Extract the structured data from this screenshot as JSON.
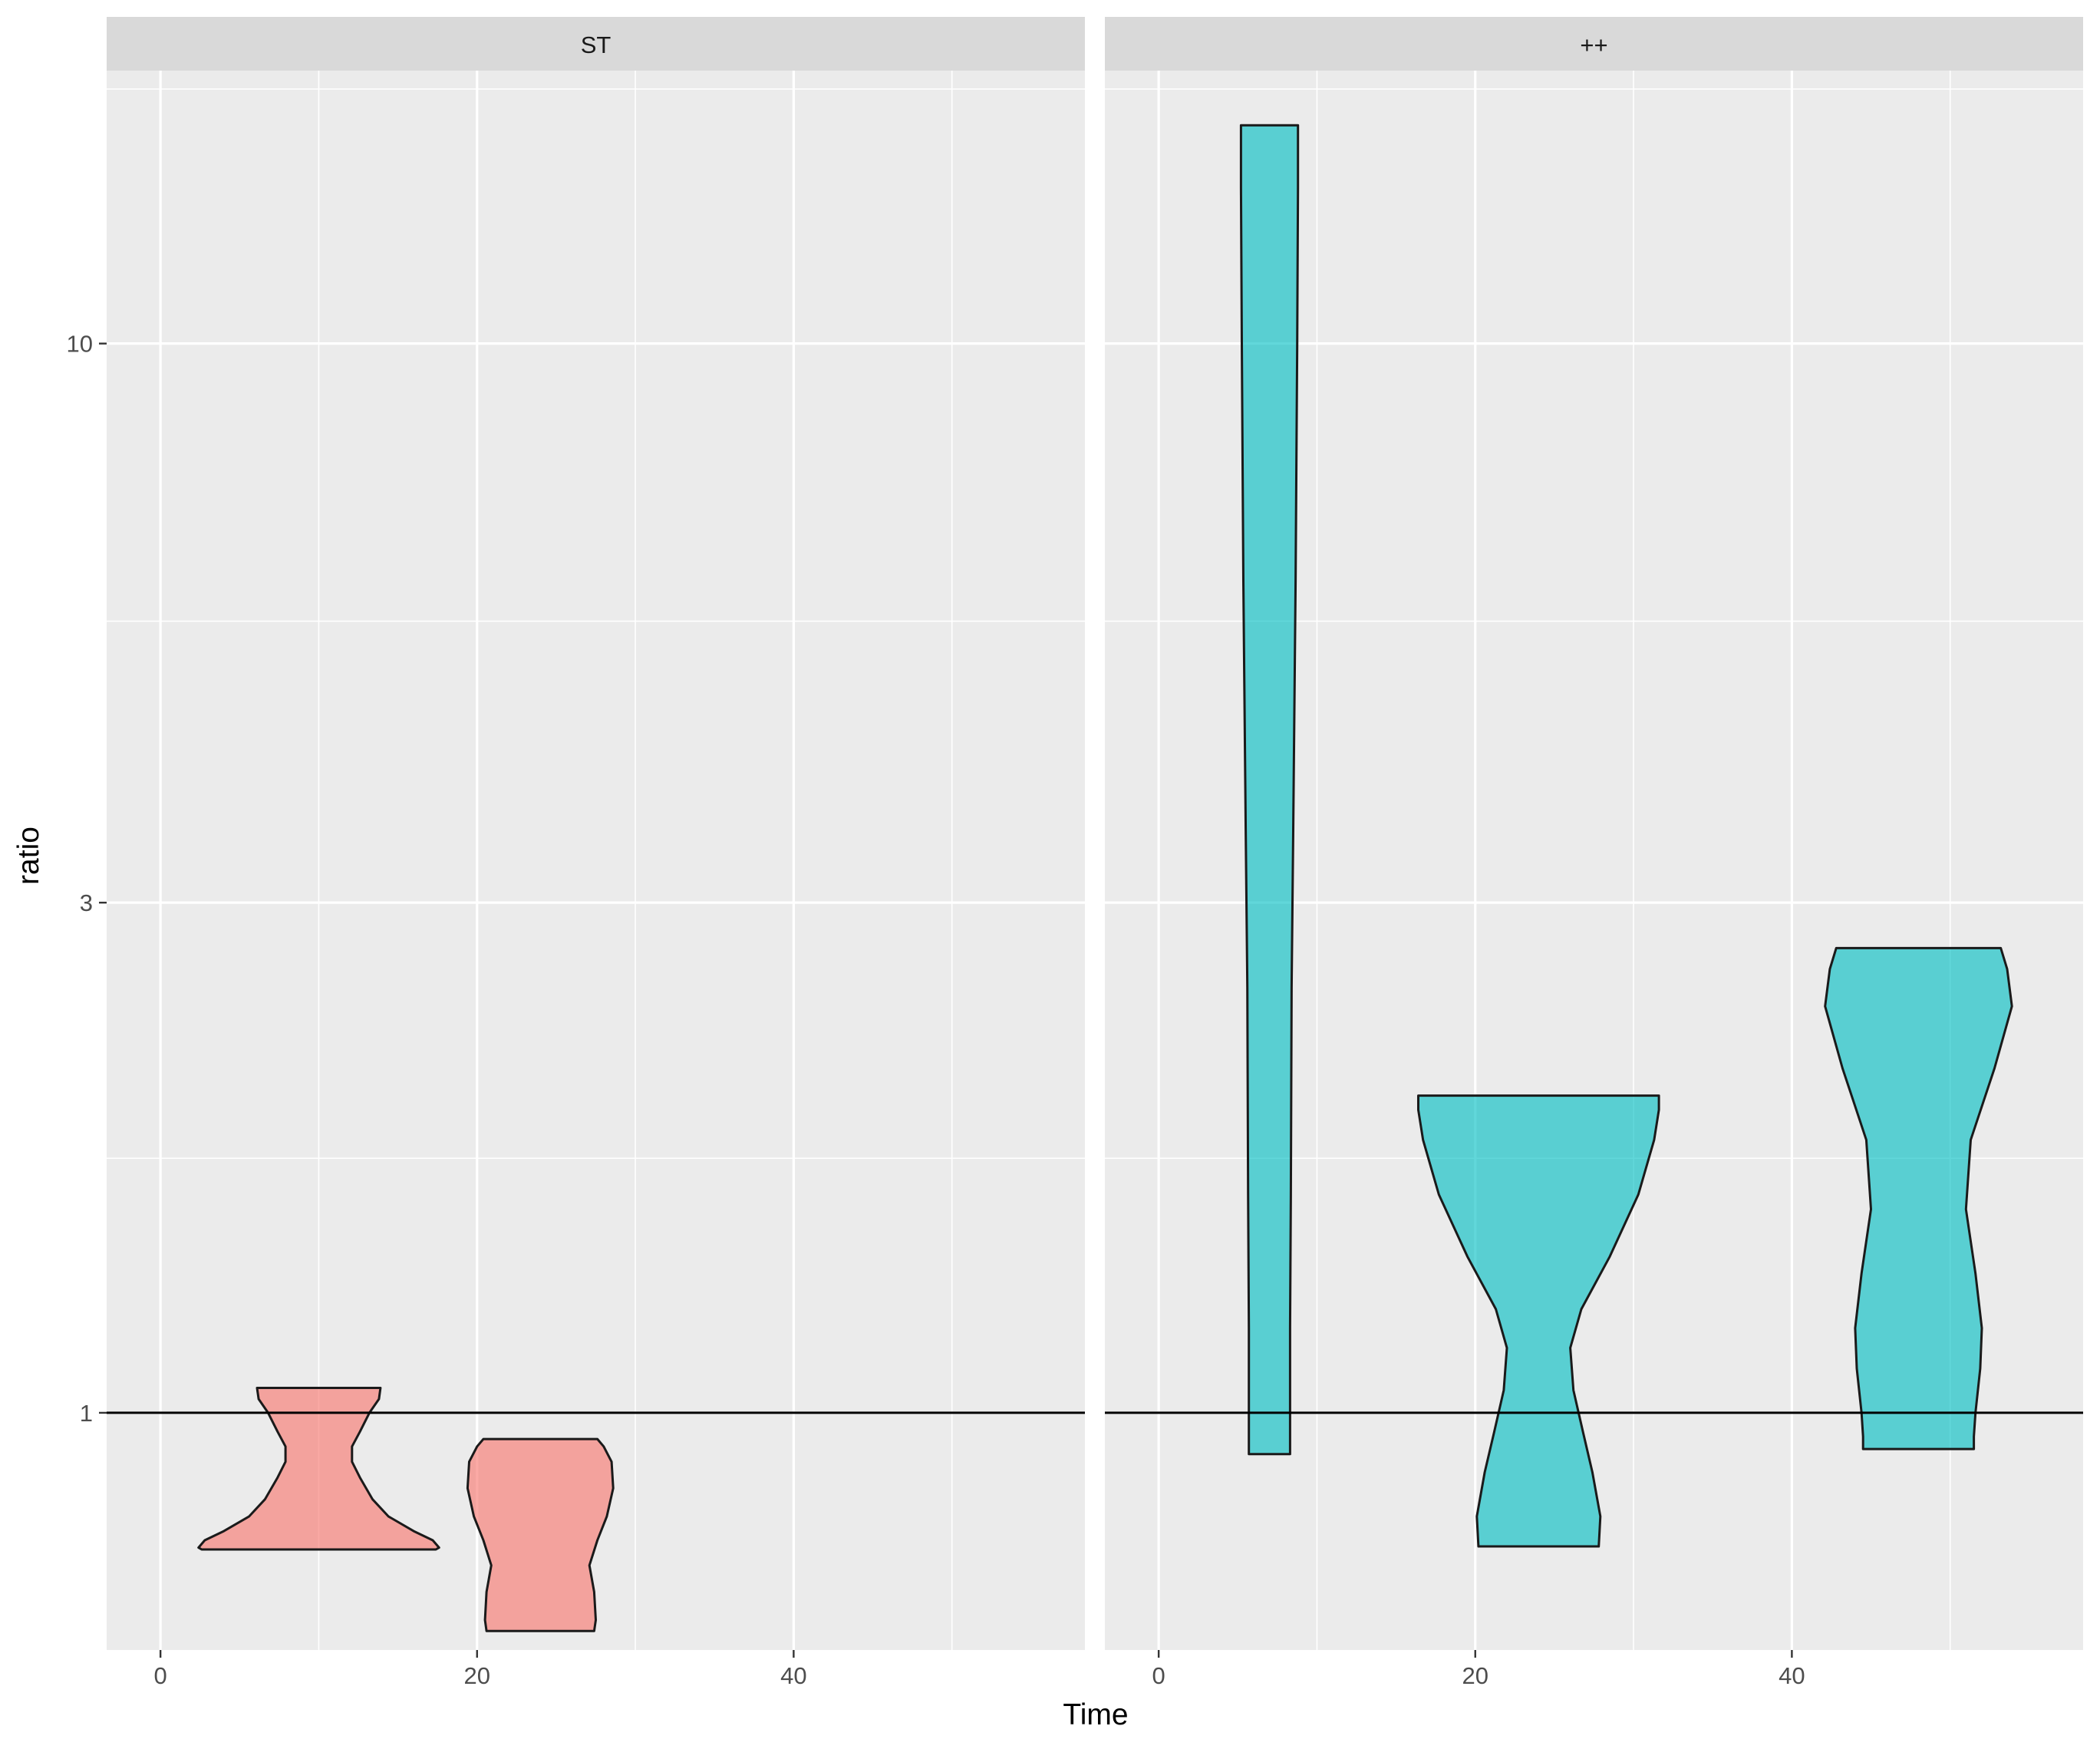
{
  "chart_data": {
    "type": "violin",
    "xlabel": "Time",
    "ylabel": "ratio",
    "y_scale": "log10",
    "xlim": [
      -3.4,
      58.4
    ],
    "ylim": [
      0.6,
      18
    ],
    "x_ticks": [
      0,
      20,
      40
    ],
    "x_minor_ticks": [
      10,
      30,
      50
    ],
    "y_ticks": [
      1,
      3,
      10
    ],
    "y_minor_ticks": [
      0.55,
      1.73,
      5.5,
      17.3
    ],
    "reference_line_y": 1,
    "grid": true,
    "legend": "none",
    "colors": {
      "ST": "#F8766D",
      "++": "#00BFC4",
      "panel_bg": "#EBEBEB",
      "strip_bg": "#D9D9D9",
      "grid": "#FFFFFF"
    },
    "panels": [
      {
        "label": "ST",
        "violins": [
          {
            "x": 10.0,
            "ymin": 0.745,
            "ymax": 1.055,
            "max_half_width": 7.6,
            "profile": [
              [
                0.745,
                7.4
              ],
              [
                0.748,
                7.6
              ],
              [
                0.76,
                7.2
              ],
              [
                0.775,
                6.0
              ],
              [
                0.8,
                4.4
              ],
              [
                0.83,
                3.4
              ],
              [
                0.87,
                2.6
              ],
              [
                0.9,
                2.1
              ],
              [
                0.93,
                2.1
              ],
              [
                0.96,
                2.6
              ],
              [
                1.0,
                3.2
              ],
              [
                1.03,
                3.8
              ],
              [
                1.055,
                3.9
              ]
            ]
          },
          {
            "x": 24.0,
            "ymin": 0.625,
            "ymax": 0.945,
            "max_half_width": 4.6,
            "profile": [
              [
                0.625,
                3.4
              ],
              [
                0.64,
                3.5
              ],
              [
                0.68,
                3.4
              ],
              [
                0.72,
                3.1
              ],
              [
                0.76,
                3.6
              ],
              [
                0.8,
                4.2
              ],
              [
                0.85,
                4.6
              ],
              [
                0.9,
                4.5
              ],
              [
                0.93,
                4.0
              ],
              [
                0.945,
                3.6
              ]
            ]
          }
        ]
      },
      {
        "label": "++",
        "violins": [
          {
            "x": 7.0,
            "ymin": 0.915,
            "ymax": 16.0,
            "max_half_width": 1.8,
            "profile": [
              [
                0.915,
                1.3
              ],
              [
                1.2,
                1.3
              ],
              [
                1.6,
                1.35
              ],
              [
                2.5,
                1.4
              ],
              [
                3.5,
                1.5
              ],
              [
                6.0,
                1.65
              ],
              [
                10.0,
                1.75
              ],
              [
                14.0,
                1.8
              ],
              [
                16.0,
                1.8
              ]
            ]
          },
          {
            "x": 24.0,
            "ymin": 0.75,
            "ymax": 1.98,
            "max_half_width": 7.6,
            "profile": [
              [
                0.75,
                3.8
              ],
              [
                0.8,
                3.9
              ],
              [
                0.88,
                3.4
              ],
              [
                0.96,
                2.8
              ],
              [
                1.05,
                2.2
              ],
              [
                1.15,
                2.0
              ],
              [
                1.25,
                2.7
              ],
              [
                1.4,
                4.5
              ],
              [
                1.6,
                6.3
              ],
              [
                1.8,
                7.3
              ],
              [
                1.92,
                7.6
              ],
              [
                1.98,
                7.6
              ]
            ]
          },
          {
            "x": 48.0,
            "ymin": 0.925,
            "ymax": 2.72,
            "max_half_width": 5.9,
            "profile": [
              [
                0.925,
                3.5
              ],
              [
                0.95,
                3.5
              ],
              [
                1.0,
                3.6
              ],
              [
                1.1,
                3.9
              ],
              [
                1.2,
                4.0
              ],
              [
                1.35,
                3.6
              ],
              [
                1.55,
                3.0
              ],
              [
                1.8,
                3.3
              ],
              [
                2.1,
                4.8
              ],
              [
                2.4,
                5.9
              ],
              [
                2.6,
                5.6
              ],
              [
                2.72,
                5.2
              ]
            ]
          }
        ]
      }
    ]
  }
}
